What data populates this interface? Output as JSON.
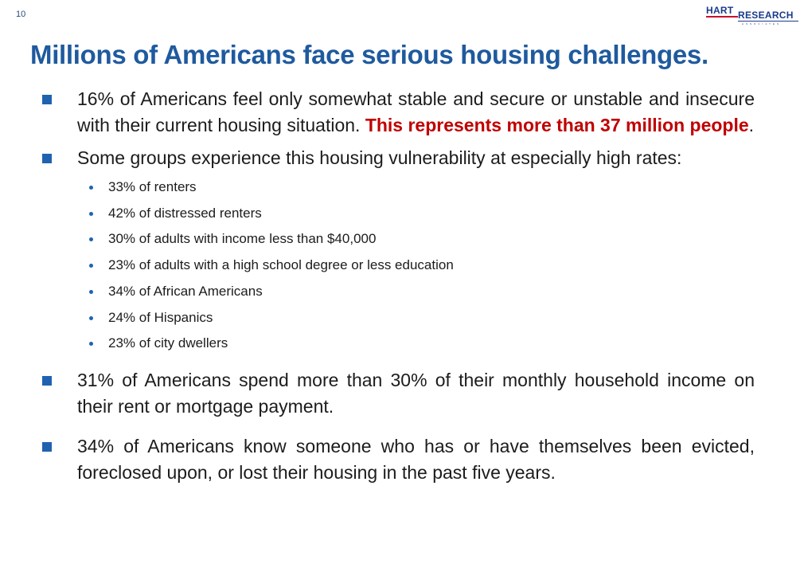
{
  "slide_number": "10",
  "logo": {
    "hart": "HART",
    "research": "RESEARCH",
    "associates": "ASSOCIATES"
  },
  "title": "Millions of Americans face serious housing challenges.",
  "bullets": [
    {
      "text": "16% of Americans feel only somewhat stable and secure or unstable and insecure with their current housing situation. ",
      "highlight": "This represents more than 37 million people",
      "trail": "."
    },
    {
      "text": "Some groups experience this housing vulnerability at especially high rates:",
      "subitems": [
        "33% of renters",
        "42% of distressed renters",
        "30% of adults with income less than $40,000",
        "23% of adults with a high school degree or less education",
        "34% of African Americans",
        "24% of Hispanics",
        "23% of city dwellers"
      ]
    },
    {
      "text": "31% of Americans spend more than 30% of their monthly household income on their rent or mortgage payment."
    },
    {
      "text": "34% of Americans know someone who has or have themselves been evicted, foreclosed upon, or lost their housing in the past five years."
    }
  ],
  "colors": {
    "title": "#1f5a9e",
    "highlight": "#c00000",
    "marker": "#1f63b0"
  }
}
